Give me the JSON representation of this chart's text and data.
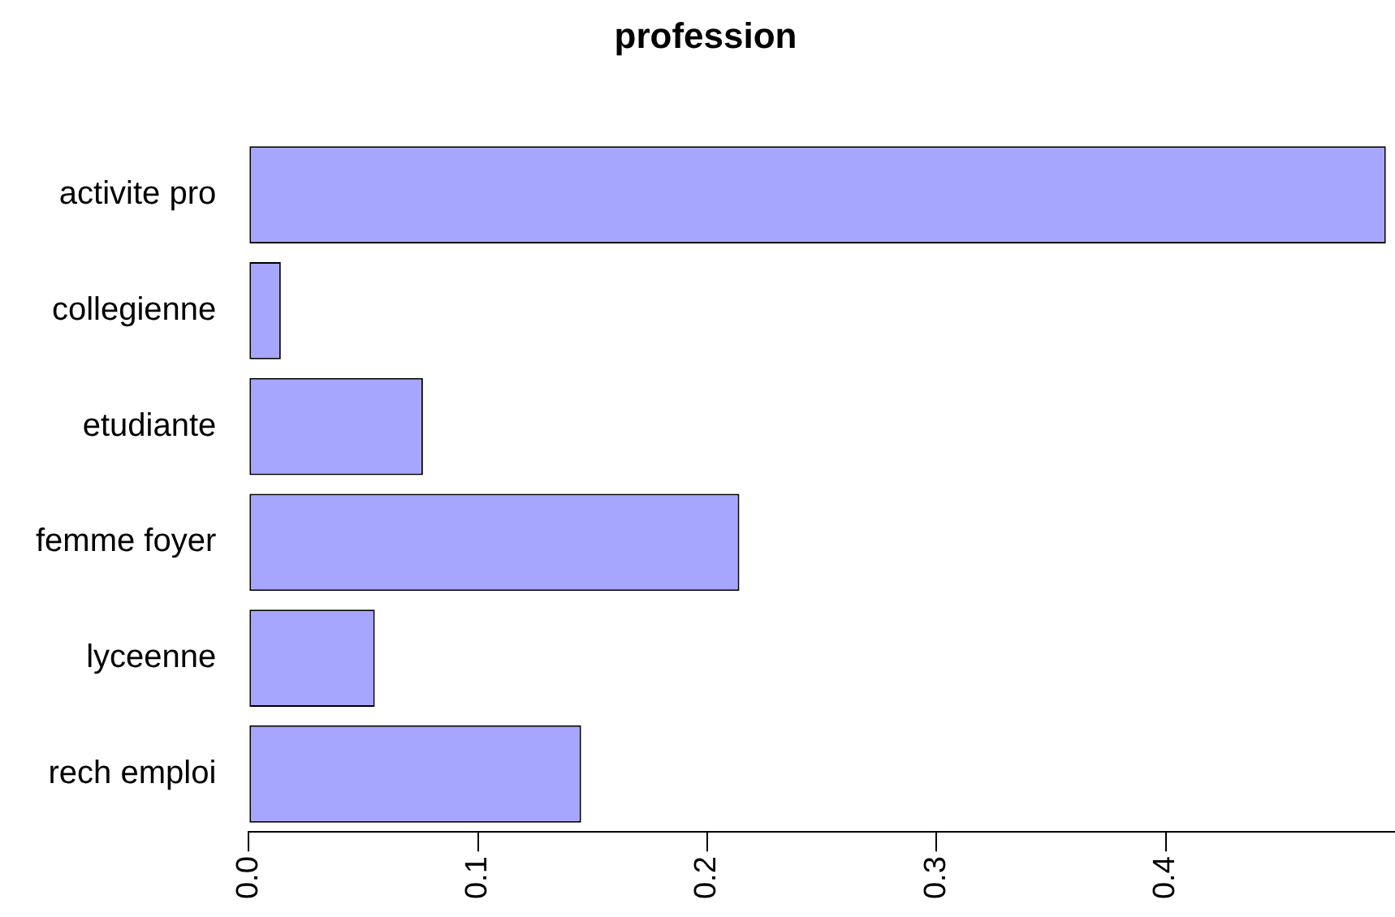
{
  "chart_data": {
    "type": "bar",
    "orientation": "horizontal",
    "title": "profession",
    "categories": [
      "activite pro",
      "collegienne",
      "etudiante",
      "femme foyer",
      "lyceenne",
      "rech emploi"
    ],
    "values": [
      0.496,
      0.014,
      0.076,
      0.214,
      0.055,
      0.145
    ],
    "color": "#a6a6ff",
    "xlim": [
      0,
      0.5
    ],
    "xticks": [
      {
        "value": 0,
        "label": "0.0"
      },
      {
        "value": 0.1,
        "label": "0.1"
      },
      {
        "value": 0.2,
        "label": "0.2"
      },
      {
        "value": 0.3,
        "label": "0.3"
      },
      {
        "value": 0.4,
        "label": "0.4"
      }
    ],
    "grid": false,
    "legend": false
  }
}
